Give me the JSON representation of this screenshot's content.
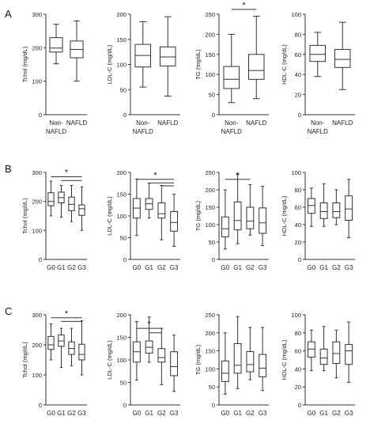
{
  "rows": [
    {
      "letter": "A"
    },
    {
      "letter": "B"
    },
    {
      "letter": "C"
    }
  ],
  "colors": {
    "line": "#333333",
    "box_fill": "#ffffff",
    "background": "#ffffff"
  },
  "chart_data": [
    {
      "type": "box",
      "row": "A",
      "ylabel": "Tchol (mg/dL)",
      "ylim": [
        0,
        300
      ],
      "yticks": [
        0,
        100,
        200,
        300
      ],
      "categories": [
        "Non-\nNAFLD",
        "NAFLD"
      ],
      "boxes": [
        {
          "min": 152,
          "q1": 187,
          "median": 199,
          "q3": 230,
          "max": 270
        },
        {
          "min": 100,
          "q1": 170,
          "median": 195,
          "q3": 220,
          "max": 280
        }
      ],
      "significance": []
    },
    {
      "type": "box",
      "row": "A",
      "ylabel": "LDL-C (mg/dL)",
      "ylim": [
        0,
        200
      ],
      "yticks": [
        0,
        50,
        100,
        150,
        200
      ],
      "categories": [
        "Non-\nNAFLD",
        "NAFLD"
      ],
      "boxes": [
        {
          "min": 55,
          "q1": 95,
          "median": 118,
          "q3": 140,
          "max": 185
        },
        {
          "min": 37,
          "q1": 97,
          "median": 115,
          "q3": 135,
          "max": 195
        }
      ],
      "significance": []
    },
    {
      "type": "box",
      "row": "A",
      "ylabel": "TG (mg/dL)",
      "ylim": [
        0,
        250
      ],
      "yticks": [
        0,
        50,
        100,
        150,
        200,
        250
      ],
      "categories": [
        "Non-\nNAFLD",
        "NAFLD"
      ],
      "boxes": [
        {
          "min": 30,
          "q1": 65,
          "median": 88,
          "q3": 120,
          "max": 200
        },
        {
          "min": 40,
          "q1": 88,
          "median": 110,
          "q3": 150,
          "max": 245
        }
      ],
      "significance": [
        {
          "from": 0,
          "to": 1,
          "label": "*",
          "y": 262
        }
      ]
    },
    {
      "type": "box",
      "row": "A",
      "ylabel": "HDL-C (mg/dL)",
      "ylim": [
        0,
        100
      ],
      "yticks": [
        0,
        20,
        40,
        60,
        80,
        100
      ],
      "categories": [
        "Non-\nNAFLD",
        "NAFLD"
      ],
      "boxes": [
        {
          "min": 38,
          "q1": 53,
          "median": 60,
          "q3": 69,
          "max": 82
        },
        {
          "min": 25,
          "q1": 47,
          "median": 55,
          "q3": 65,
          "max": 92
        }
      ],
      "significance": []
    },
    {
      "type": "box",
      "row": "B",
      "ylabel": "Tchol (mg/dL)",
      "ylim": [
        0,
        300
      ],
      "yticks": [
        0,
        100,
        200,
        300
      ],
      "categories": [
        "G0",
        "G1",
        "G2",
        "G3"
      ],
      "boxes": [
        {
          "min": 150,
          "q1": 185,
          "median": 200,
          "q3": 230,
          "max": 270
        },
        {
          "min": 145,
          "q1": 195,
          "median": 213,
          "q3": 232,
          "max": 255
        },
        {
          "min": 130,
          "q1": 168,
          "median": 190,
          "q3": 215,
          "max": 255
        },
        {
          "min": 100,
          "q1": 152,
          "median": 175,
          "q3": 188,
          "max": 250
        }
      ],
      "significance": [
        {
          "from": 0,
          "to": 3,
          "label": "*",
          "y": 285
        },
        {
          "from": 1,
          "to": 3,
          "label": "",
          "y": 272
        }
      ]
    },
    {
      "type": "box",
      "row": "B",
      "ylabel": "LDL-C (mg/dL)",
      "ylim": [
        0,
        200
      ],
      "yticks": [
        0,
        50,
        100,
        150,
        200
      ],
      "categories": [
        "G0",
        "G1",
        "G2",
        "G3"
      ],
      "boxes": [
        {
          "min": 55,
          "q1": 95,
          "median": 118,
          "q3": 140,
          "max": 185
        },
        {
          "min": 95,
          "q1": 115,
          "median": 128,
          "q3": 140,
          "max": 175
        },
        {
          "min": 45,
          "q1": 95,
          "median": 105,
          "q3": 130,
          "max": 170
        },
        {
          "min": 30,
          "q1": 65,
          "median": 85,
          "q3": 110,
          "max": 150
        }
      ],
      "significance": [
        {
          "from": 0,
          "to": 3,
          "label": "*",
          "y": 184
        },
        {
          "from": 1,
          "to": 3,
          "label": "",
          "y": 176
        },
        {
          "from": 2,
          "to": 3,
          "label": "",
          "y": 169
        }
      ]
    },
    {
      "type": "box",
      "row": "B",
      "ylabel": "TG (mg/dL)",
      "ylim": [
        0,
        250
      ],
      "yticks": [
        0,
        50,
        100,
        150,
        200,
        250
      ],
      "categories": [
        "G0",
        "G1",
        "G2",
        "G3"
      ],
      "boxes": [
        {
          "min": 30,
          "q1": 65,
          "median": 88,
          "q3": 122,
          "max": 200
        },
        {
          "min": 45,
          "q1": 85,
          "median": 112,
          "q3": 165,
          "max": 245
        },
        {
          "min": 70,
          "q1": 88,
          "median": 110,
          "q3": 150,
          "max": 215
        },
        {
          "min": 40,
          "q1": 75,
          "median": 105,
          "q3": 148,
          "max": 210
        }
      ],
      "significance": [
        {
          "from": 0,
          "to": 2,
          "label": "*",
          "y": 230
        }
      ]
    },
    {
      "type": "box",
      "row": "B",
      "ylabel": "HDL-C (mg/dL)",
      "ylim": [
        0,
        100
      ],
      "yticks": [
        0,
        20,
        40,
        60,
        80,
        100
      ],
      "categories": [
        "G0",
        "G1",
        "G2",
        "G3"
      ],
      "boxes": [
        {
          "min": 38,
          "q1": 53,
          "median": 62,
          "q3": 70,
          "max": 82
        },
        {
          "min": 38,
          "q1": 47,
          "median": 55,
          "q3": 65,
          "max": 87
        },
        {
          "min": 40,
          "q1": 48,
          "median": 55,
          "q3": 65,
          "max": 80
        },
        {
          "min": 25,
          "q1": 45,
          "median": 58,
          "q3": 73,
          "max": 92
        }
      ],
      "significance": []
    },
    {
      "type": "box",
      "row": "C",
      "ylabel": "Tchol (mg/dL)",
      "ylim": [
        0,
        300
      ],
      "yticks": [
        0,
        100,
        200,
        300
      ],
      "categories": [
        "G0",
        "G1",
        "G2",
        "G3"
      ],
      "boxes": [
        {
          "min": 150,
          "q1": 185,
          "median": 200,
          "q3": 228,
          "max": 270
        },
        {
          "min": 125,
          "q1": 195,
          "median": 213,
          "q3": 233,
          "max": 255
        },
        {
          "min": 130,
          "q1": 168,
          "median": 188,
          "q3": 210,
          "max": 255
        },
        {
          "min": 100,
          "q1": 150,
          "median": 168,
          "q3": 202,
          "max": 280
        }
      ],
      "significance": [
        {
          "from": 0,
          "to": 3,
          "label": "*",
          "y": 290
        },
        {
          "from": 1,
          "to": 3,
          "label": "",
          "y": 278
        }
      ]
    },
    {
      "type": "box",
      "row": "C",
      "ylabel": "LDL-C (mg/dL)",
      "ylim": [
        0,
        200
      ],
      "yticks": [
        0,
        50,
        100,
        150,
        200
      ],
      "categories": [
        "G0",
        "G1",
        "G2",
        "G3"
      ],
      "boxes": [
        {
          "min": 55,
          "q1": 95,
          "median": 118,
          "q3": 140,
          "max": 185
        },
        {
          "min": 95,
          "q1": 115,
          "median": 128,
          "q3": 142,
          "max": 195
        },
        {
          "min": 45,
          "q1": 95,
          "median": 105,
          "q3": 125,
          "max": 170
        },
        {
          "min": 30,
          "q1": 65,
          "median": 85,
          "q3": 118,
          "max": 155
        }
      ],
      "significance": [
        {
          "from": 0,
          "to": 2,
          "label": "*",
          "y": 170
        },
        {
          "from": 1,
          "to": 2,
          "label": "",
          "y": 160
        }
      ]
    },
    {
      "type": "box",
      "row": "C",
      "ylabel": "TG (mg/dL)",
      "ylim": [
        0,
        250
      ],
      "yticks": [
        0,
        50,
        100,
        150,
        200,
        250
      ],
      "categories": [
        "G0",
        "G1",
        "G2",
        "G3"
      ],
      "boxes": [
        {
          "min": 30,
          "q1": 65,
          "median": 88,
          "q3": 122,
          "max": 200
        },
        {
          "min": 45,
          "q1": 88,
          "median": 110,
          "q3": 170,
          "max": 245
        },
        {
          "min": 70,
          "q1": 92,
          "median": 112,
          "q3": 148,
          "max": 215
        },
        {
          "min": 40,
          "q1": 78,
          "median": 102,
          "q3": 140,
          "max": 215
        }
      ],
      "significance": []
    },
    {
      "type": "box",
      "row": "C",
      "ylabel": "HDL-C (mg/dL)",
      "ylim": [
        0,
        100
      ],
      "yticks": [
        0,
        20,
        40,
        60,
        80,
        100
      ],
      "categories": [
        "G0",
        "G1",
        "G2",
        "G3"
      ],
      "boxes": [
        {
          "min": 38,
          "q1": 53,
          "median": 62,
          "q3": 70,
          "max": 83
        },
        {
          "min": 38,
          "q1": 45,
          "median": 52,
          "q3": 62,
          "max": 87
        },
        {
          "min": 30,
          "q1": 46,
          "median": 57,
          "q3": 70,
          "max": 83
        },
        {
          "min": 25,
          "q1": 45,
          "median": 60,
          "q3": 67,
          "max": 92
        }
      ],
      "significance": []
    }
  ]
}
